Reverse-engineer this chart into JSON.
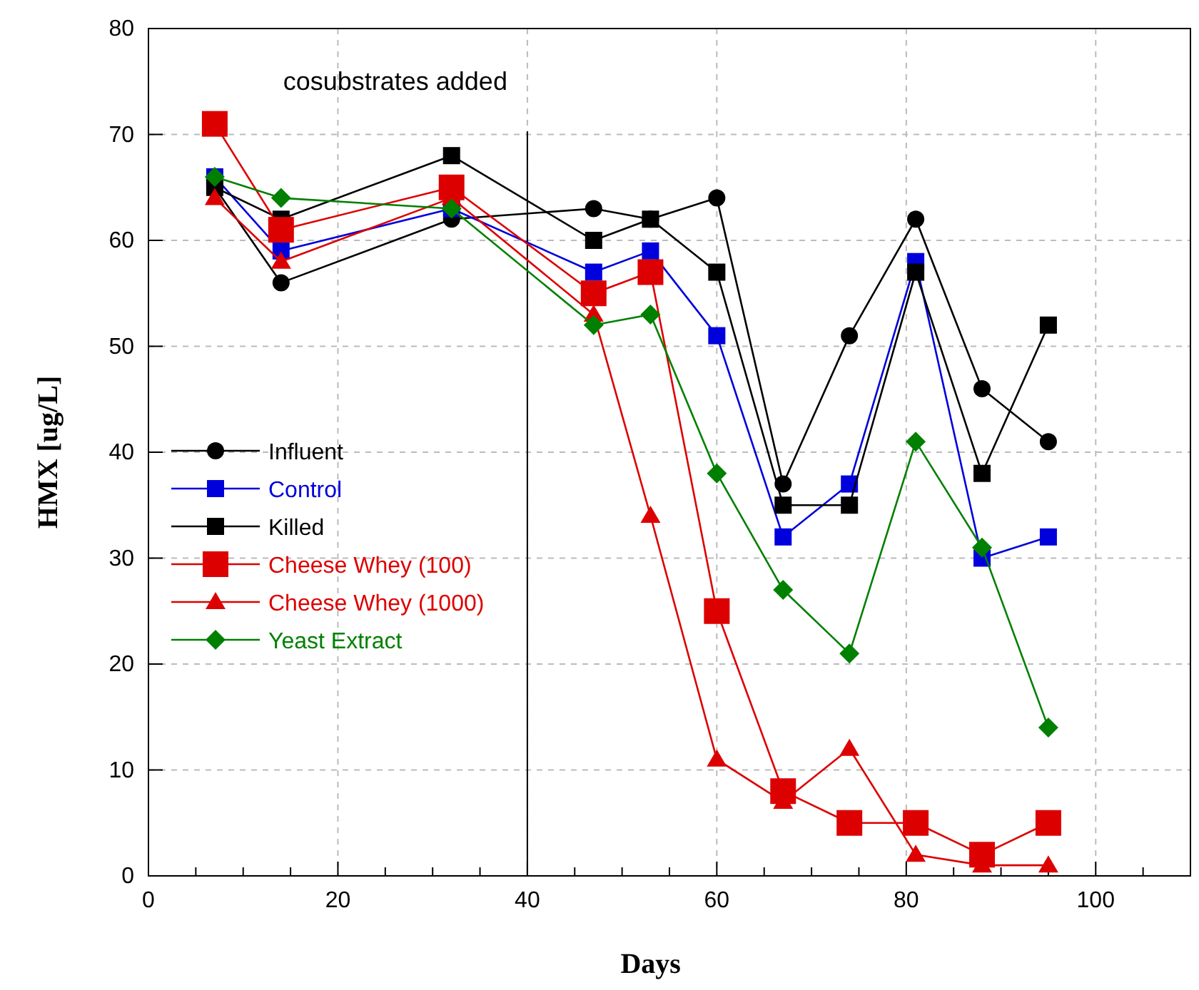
{
  "chart_data": {
    "type": "line",
    "xlabel": "Days",
    "ylabel": "HMX  [ug/L]",
    "x": [
      7,
      14,
      32,
      47,
      53,
      60,
      67,
      74,
      81,
      88,
      95
    ],
    "series": [
      {
        "name": "Influent",
        "color": "#000000",
        "marker": "circle",
        "values": [
          65,
          56,
          62,
          63,
          62,
          64,
          37,
          51,
          62,
          46,
          41
        ]
      },
      {
        "name": "Control",
        "color": "#0000dd",
        "marker": "square",
        "values": [
          66,
          59,
          63,
          57,
          59,
          51,
          32,
          37,
          58,
          30,
          32
        ]
      },
      {
        "name": "Killed",
        "color": "#000000",
        "marker": "square",
        "values": [
          65,
          62,
          68,
          60,
          62,
          57,
          35,
          35,
          57,
          38,
          52
        ]
      },
      {
        "name": "Cheese Whey (100)",
        "color": "#dd0000",
        "marker": "square",
        "values": [
          71,
          61,
          65,
          55,
          57,
          25,
          8,
          5,
          5,
          2,
          5
        ]
      },
      {
        "name": "Cheese Whey (1000)",
        "color": "#dd0000",
        "marker": "triangle",
        "values": [
          64,
          58,
          64,
          53,
          34,
          11,
          7,
          12,
          2,
          1,
          1
        ]
      },
      {
        "name": "Yeast Extract",
        "color": "#008000",
        "marker": "diamond",
        "values": [
          66,
          64,
          63,
          52,
          53,
          38,
          27,
          21,
          41,
          31,
          14
        ]
      }
    ],
    "xlim": [
      0,
      110
    ],
    "xticks": [
      0,
      {
        "value": 5,
        "label": null
      },
      {
        "value": 10,
        "label": null
      },
      {
        "value": 15,
        "label": null
      },
      20,
      {
        "value": 25,
        "label": null
      },
      {
        "value": 30,
        "label": null
      },
      {
        "value": 35,
        "label": null
      },
      40,
      {
        "value": 45,
        "label": null
      },
      {
        "value": 50,
        "label": null
      },
      {
        "value": 55,
        "label": null
      },
      60,
      {
        "value": 65,
        "label": null
      },
      {
        "value": 70,
        "label": null
      },
      {
        "value": 75,
        "label": null
      },
      80,
      {
        "value": 85,
        "label": null
      },
      {
        "value": 90,
        "label": null
      },
      {
        "value": 95,
        "label": null
      },
      100,
      {
        "value": 105,
        "label": null
      }
    ],
    "ylim": [
      0,
      80
    ],
    "yticks": [
      0,
      10,
      20,
      30,
      40,
      50,
      60,
      70,
      80
    ],
    "grid": true,
    "legend": "left",
    "line_style": "solid",
    "ref_lines": [
      {
        "axis": "x",
        "value": 40,
        "label": "cosubstrates added",
        "color": "#000000"
      }
    ]
  }
}
